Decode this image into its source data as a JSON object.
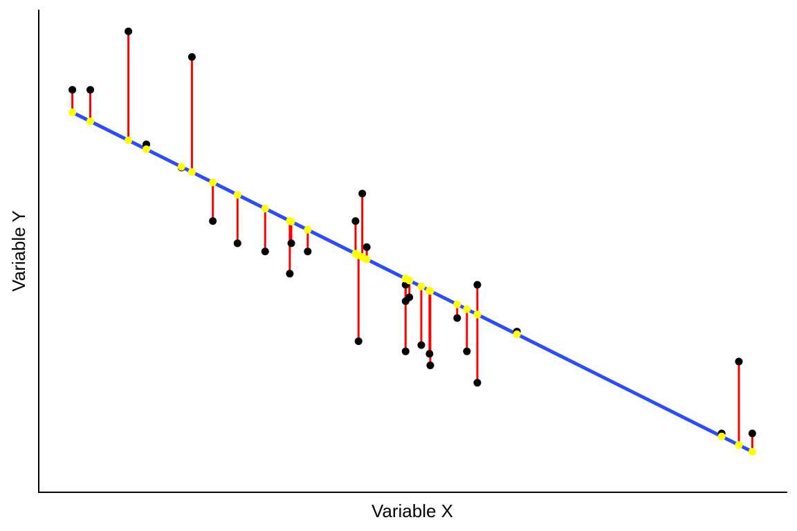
{
  "chart_data": {
    "type": "scatter",
    "xlabel": "Variable X",
    "ylabel": "Variable Y",
    "xlim": [
      0,
      100
    ],
    "ylim": [
      0,
      100
    ],
    "grid": false,
    "legend": "none",
    "colors": {
      "points": "#000000",
      "fit_line": "#2b4bff",
      "residuals": "#ff0000",
      "fitted_points": "#ffff00",
      "axes": "#000000"
    },
    "fit_line": {
      "intercept": 82.2,
      "slope": -0.7727
    },
    "points": [
      {
        "x": 4.5,
        "y": 83.4
      },
      {
        "x": 6.9,
        "y": 83.4
      },
      {
        "x": 12.0,
        "y": 95.5
      },
      {
        "x": 14.4,
        "y": 72.1
      },
      {
        "x": 19.1,
        "y": 67.3
      },
      {
        "x": 20.5,
        "y": 90.2
      },
      {
        "x": 23.3,
        "y": 56.2
      },
      {
        "x": 26.6,
        "y": 51.6
      },
      {
        "x": 30.3,
        "y": 49.9
      },
      {
        "x": 33.6,
        "y": 45.3
      },
      {
        "x": 33.8,
        "y": 51.6
      },
      {
        "x": 36.0,
        "y": 49.9
      },
      {
        "x": 42.4,
        "y": 56.2
      },
      {
        "x": 42.8,
        "y": 31.3
      },
      {
        "x": 43.3,
        "y": 61.9
      },
      {
        "x": 43.9,
        "y": 50.8
      },
      {
        "x": 49.1,
        "y": 43.0
      },
      {
        "x": 49.1,
        "y": 39.6
      },
      {
        "x": 49.1,
        "y": 29.2
      },
      {
        "x": 49.6,
        "y": 40.4
      },
      {
        "x": 51.2,
        "y": 30.5
      },
      {
        "x": 52.3,
        "y": 28.7
      },
      {
        "x": 52.4,
        "y": 26.3
      },
      {
        "x": 56.0,
        "y": 36.1
      },
      {
        "x": 57.3,
        "y": 29.2
      },
      {
        "x": 58.7,
        "y": 43.0
      },
      {
        "x": 58.7,
        "y": 22.7
      },
      {
        "x": 64.0,
        "y": 33.3
      },
      {
        "x": 91.4,
        "y": 12.2
      },
      {
        "x": 93.7,
        "y": 27.1
      },
      {
        "x": 95.5,
        "y": 12.2
      }
    ]
  }
}
